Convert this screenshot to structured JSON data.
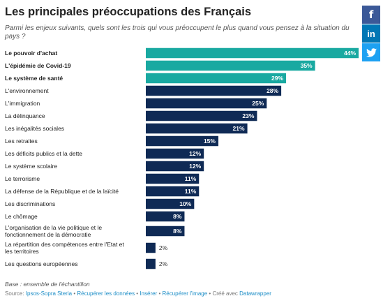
{
  "title": "Les principales préoccupations des Français",
  "subtitle": "Parmi les enjeux suivants, quels sont les trois qui vous préoccupent le plus quand vous pensez à la situation du pays ?",
  "notes": "Base : ensemble de l'échantillon",
  "source": {
    "label": "Source:",
    "name": "Ipsos-Sopra Steria",
    "sep": " • ",
    "link_data": "Récupérer les données",
    "link_embed": "Insérer",
    "link_image": "Récupérer l'image",
    "created_with": "Créé avec",
    "tool": "Datawrapper"
  },
  "share": {
    "facebook": "f",
    "linkedin": "in",
    "twitter": "twitter-icon"
  },
  "colors": {
    "highlight": "#19a9a1",
    "default": "#0f2a55",
    "facebook": "#3b5998",
    "linkedin": "#0077b5",
    "twitter": "#1da1f2"
  },
  "chart_data": {
    "type": "bar",
    "orientation": "horizontal",
    "unit": "%",
    "xlim": [
      0,
      44
    ],
    "categories": [
      "Le pouvoir d'achat",
      "L'épidémie de Covid-19",
      "Le système de santé",
      "L'environnement",
      "L'immigration",
      "La délinquance",
      "Les inégalités sociales",
      "Les retraites",
      "Les déficits publics et la dette",
      "Le système scolaire",
      "Le terrorisme",
      "La défense de la République et de la laïcité",
      "Les discriminations",
      "Le chômage",
      "L'organisation de la vie politique et le fonctionnement de la démocratie",
      "La répartition des compétences entre l'Etat et les territoires",
      "Les questions européennes"
    ],
    "values": [
      44,
      35,
      29,
      28,
      25,
      23,
      21,
      15,
      12,
      12,
      11,
      11,
      10,
      8,
      8,
      2,
      2
    ],
    "highlighted": [
      true,
      true,
      true,
      false,
      false,
      false,
      false,
      false,
      false,
      false,
      false,
      false,
      false,
      false,
      false,
      false,
      false
    ]
  }
}
